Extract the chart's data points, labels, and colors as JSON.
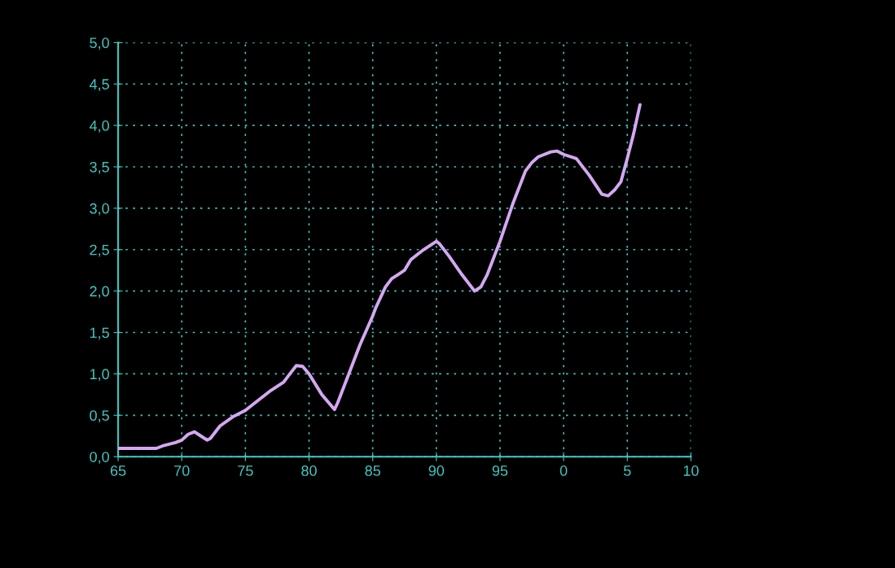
{
  "chart_data": {
    "type": "line",
    "x": [
      "1965-01",
      "1968-01",
      "1968-07",
      "1969-07",
      "1970-01",
      "1970-07",
      "1971-01",
      "1971-07",
      "1972-01",
      "1972-04",
      "1973-01",
      "1974-01",
      "1975-01",
      "1976-01",
      "1977-01",
      "1978-01",
      "1978-07",
      "1979-01",
      "1979-07",
      "1980-01",
      "1981-01",
      "1982-01",
      "1982-04",
      "1983-01",
      "1984-01",
      "1985-01",
      "1985-04",
      "1986-01",
      "1986-07",
      "1987-01",
      "1987-07",
      "1988-01",
      "1989-01",
      "1990-01",
      "1990-04",
      "1991-01",
      "1992-01",
      "1993-01",
      "1993-07",
      "1994-01",
      "1995-01",
      "1996-01",
      "1997-01",
      "1997-07",
      "1998-01",
      "1999-01",
      "1999-07",
      "2000-01",
      "2001-01",
      "2002-01",
      "2003-01",
      "2003-07",
      "2004-01",
      "2004-07",
      "2005-01",
      "2005-07",
      "2006-01"
    ],
    "series": [
      {
        "color": "#d4a8f0",
        "values": [
          0.1,
          0.1,
          0.13,
          0.17,
          0.2,
          0.27,
          0.3,
          0.25,
          0.2,
          0.22,
          0.37,
          0.48,
          0.56,
          0.68,
          0.8,
          0.9,
          1.0,
          1.1,
          1.09,
          1.0,
          0.75,
          0.57,
          0.65,
          0.95,
          1.35,
          1.7,
          1.8,
          2.05,
          2.15,
          2.2,
          2.25,
          2.38,
          2.5,
          2.6,
          2.57,
          2.42,
          2.2,
          2.0,
          2.05,
          2.2,
          2.6,
          3.05,
          3.45,
          3.55,
          3.62,
          3.68,
          3.69,
          3.65,
          3.6,
          3.4,
          3.17,
          3.15,
          3.22,
          3.32,
          3.6,
          3.9,
          4.25
        ]
      }
    ],
    "xlim": [
      "1965",
      "2010"
    ],
    "xticks": [
      {
        "value": "1965",
        "label": "65"
      },
      {
        "value": "1970",
        "label": "70"
      },
      {
        "value": "1975",
        "label": "75"
      },
      {
        "value": "1980",
        "label": "80"
      },
      {
        "value": "1985",
        "label": "85"
      },
      {
        "value": "1990",
        "label": "90"
      },
      {
        "value": "1995",
        "label": "95"
      },
      {
        "value": "2000",
        "label": "0"
      },
      {
        "value": "2005",
        "label": "5"
      },
      {
        "value": "2010",
        "label": "10"
      }
    ],
    "ylim": [
      0,
      5
    ],
    "yticks": [
      {
        "value": 0,
        "label": "0,0"
      },
      {
        "value": 0.5,
        "label": "0,5"
      },
      {
        "value": 1,
        "label": "1,0"
      },
      {
        "value": 1.5,
        "label": "1,5"
      },
      {
        "value": 2,
        "label": "2,0"
      },
      {
        "value": 2.5,
        "label": "2,5"
      },
      {
        "value": 3,
        "label": "3,0"
      },
      {
        "value": 3.5,
        "label": "3,5"
      },
      {
        "value": 4,
        "label": "4,0"
      },
      {
        "value": 4.5,
        "label": "4,5"
      },
      {
        "value": 5,
        "label": "5,0"
      }
    ],
    "grid": true,
    "marker": "none",
    "line_style": "solid"
  }
}
